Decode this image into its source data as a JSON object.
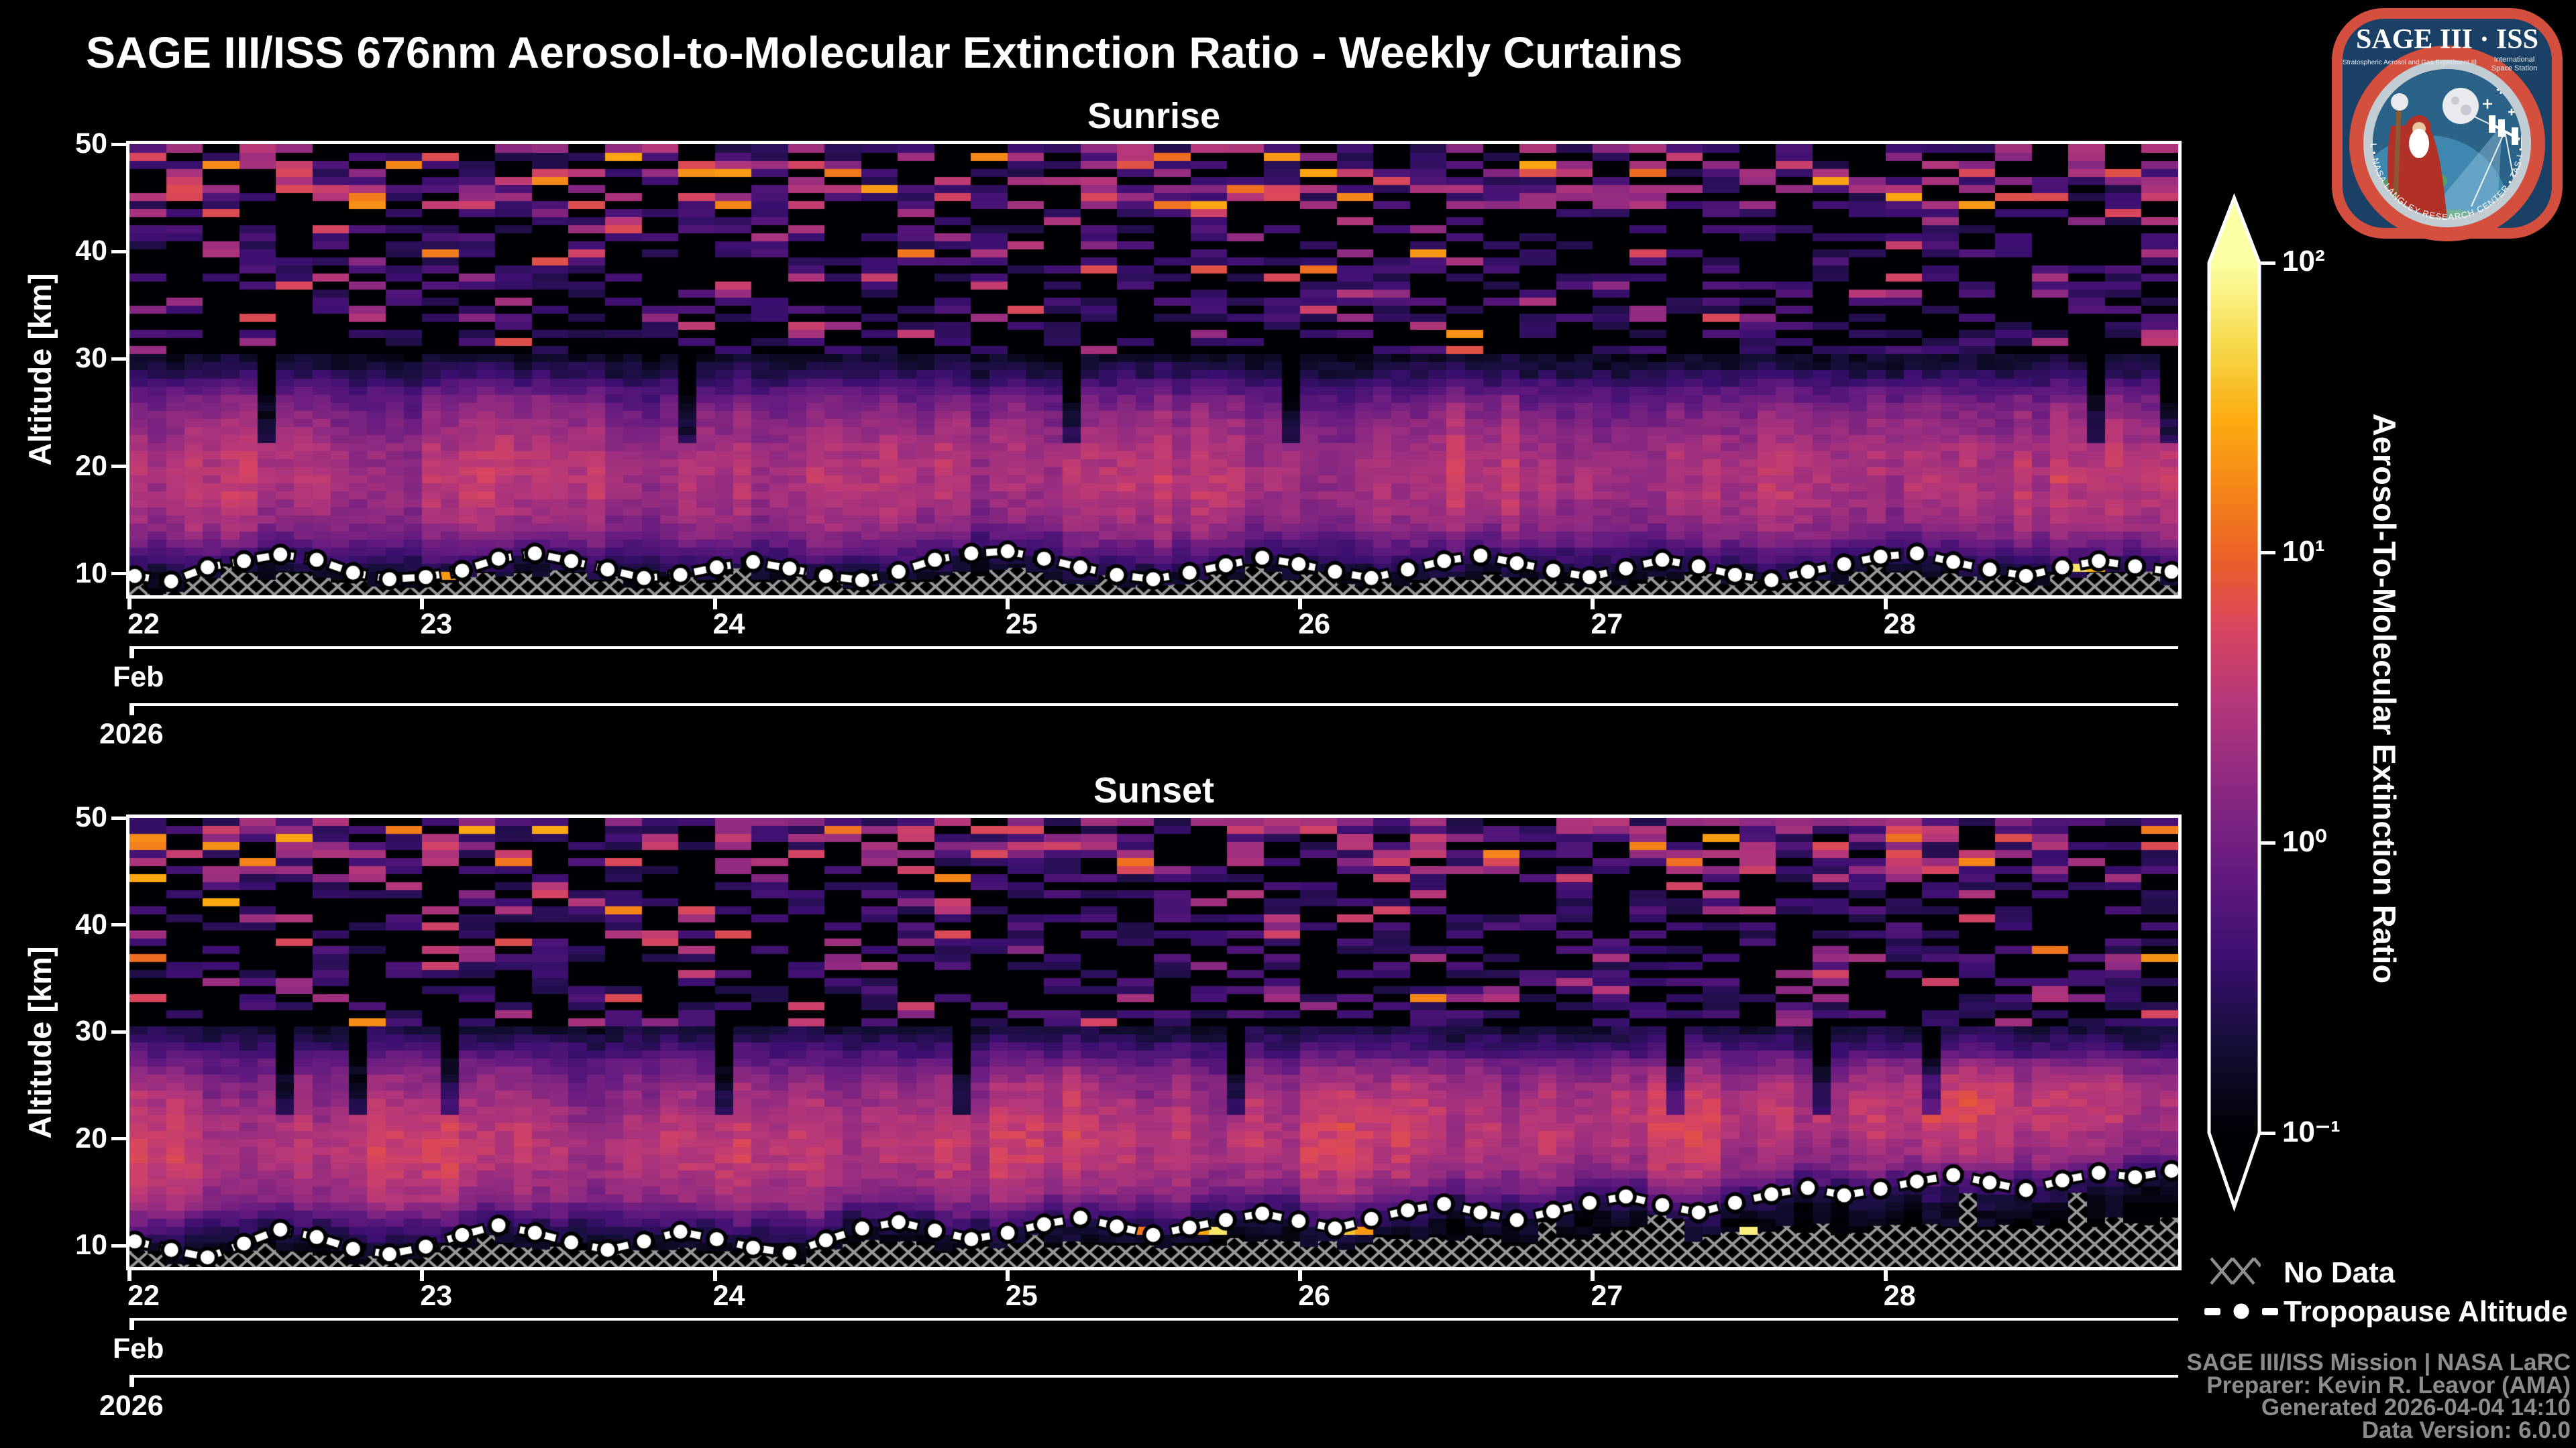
{
  "header": {
    "title": "SAGE III/ISS 676nm Aerosol-to-Molecular Extinction Ratio - Weekly Curtains"
  },
  "logo": {
    "name": "SAGE III ISS mission patch",
    "title": "SAGE III · ISS",
    "subtitle_left": "Stratospheric Aerosol and Gas Experiment III",
    "subtitle_right_1": "International",
    "subtitle_right_2": "Space Station",
    "ring_text": "BALL • NASA LANGLEY RESEARCH CENTER • TAS-I • ESA",
    "border_color": "#d44f3e",
    "bg_color": "#1a4065"
  },
  "colorbar": {
    "label": "Aerosol-To-Molecular Extinction Ratio",
    "ticks": [
      "10²",
      "10¹",
      "10⁰",
      "10⁻¹"
    ],
    "scale": "log",
    "domain": [
      0.1,
      100
    ],
    "colormap": "magma/inferno",
    "extend": "both"
  },
  "legend": {
    "no_data": "No Data",
    "tropopause": "Tropopause Altitude",
    "hatch_color": "#8e8e8e"
  },
  "attribution": {
    "color": "#8c8c8c",
    "lines": [
      "SAGE III/ISS Mission | NASA LaRC",
      "Preparer: Kevin R. Leavor (AMA)",
      "Generated 2026-04-04 14:10",
      "Data Version: 6.0.0"
    ]
  },
  "chart_data": [
    {
      "type": "heatmap",
      "title": "Sunrise",
      "ylabel": "Altitude [km]",
      "y_ticks": [
        "50",
        "40",
        "30",
        "20",
        "10"
      ],
      "y_tick_values": [
        50,
        40,
        30,
        20,
        10
      ],
      "y_range_km": [
        8,
        50
      ],
      "x_tick_labels": [
        "22",
        "23",
        "24",
        "25",
        "26",
        "27",
        "28"
      ],
      "x_month": "Feb",
      "x_year": "2026",
      "x_range": "2026-02-22 to 2026-02-28",
      "color_scale": {
        "type": "log",
        "min": 0.1,
        "max": 100
      },
      "column_resolution": "~16 profiles per day (112 columns)",
      "row_resolution_km": 0.75,
      "median_profile_alt_ratio": [
        [
          8.5,
          0.15
        ],
        [
          10,
          0.2
        ],
        [
          12,
          0.6
        ],
        [
          14,
          1.6
        ],
        [
          17,
          2.6
        ],
        [
          19,
          2.8
        ],
        [
          21,
          2.5
        ],
        [
          23,
          1.9
        ],
        [
          25,
          1.3
        ],
        [
          27,
          0.7
        ],
        [
          29,
          0.25
        ],
        [
          31,
          0.12
        ],
        [
          34,
          0.1
        ],
        [
          38,
          0.12
        ],
        [
          42,
          0.18
        ],
        [
          45,
          0.25
        ],
        [
          48,
          0.3
        ],
        [
          50,
          0.3
        ]
      ],
      "tropopause_km": [
        9.8,
        9.3,
        10.6,
        11.2,
        11.8,
        11.3,
        10.1,
        9.5,
        9.7,
        10.3,
        11.4,
        11.9,
        11.2,
        10.4,
        9.6,
        9.9,
        10.6,
        11.1,
        10.5,
        9.8,
        9.4,
        10.2,
        11.3,
        11.9,
        12.1,
        11.4,
        10.6,
        9.9,
        9.5,
        10.1,
        10.8,
        11.5,
        10.9,
        10.2,
        9.6,
        10.4,
        11.2,
        11.7,
        11.0,
        10.3,
        9.7,
        10.5,
        11.3,
        10.7,
        9.9,
        9.4,
        10.2,
        10.9,
        11.6,
        11.9,
        11.1,
        10.4,
        9.8,
        10.6,
        11.2,
        10.7,
        10.2
      ],
      "notes": "Bright ratio band (~1.5-4) between ~13-26 km; dark (<0.2) 29-44 km with purple/pink speckle; speckled 44-50 km; sparse orange hot cells (ratio 10-50) near 9-11 km; gray X hatch = no data below tropopause"
    },
    {
      "type": "heatmap",
      "title": "Sunset",
      "ylabel": "Altitude [km]",
      "y_ticks": [
        "50",
        "40",
        "30",
        "20",
        "10"
      ],
      "y_tick_values": [
        50,
        40,
        30,
        20,
        10
      ],
      "y_range_km": [
        8,
        50
      ],
      "x_tick_labels": [
        "22",
        "23",
        "24",
        "25",
        "26",
        "27",
        "28"
      ],
      "x_month": "Feb",
      "x_year": "2026",
      "x_range": "2026-02-22 to 2026-02-28",
      "color_scale": {
        "type": "log",
        "min": 0.1,
        "max": 100
      },
      "column_resolution": "~16 profiles per day (112 columns)",
      "row_resolution_km": 0.75,
      "median_profile_alt_ratio": [
        [
          8.5,
          0.12
        ],
        [
          10,
          0.18
        ],
        [
          12,
          0.5
        ],
        [
          14,
          1.8
        ],
        [
          17,
          3.2
        ],
        [
          19,
          3.5
        ],
        [
          21,
          3.0
        ],
        [
          23,
          2.3
        ],
        [
          25,
          1.6
        ],
        [
          27,
          0.9
        ],
        [
          29,
          0.35
        ],
        [
          31,
          0.15
        ],
        [
          34,
          0.12
        ],
        [
          38,
          0.15
        ],
        [
          42,
          0.22
        ],
        [
          45,
          0.3
        ],
        [
          48,
          0.4
        ],
        [
          50,
          0.4
        ]
      ],
      "tropopause_km": [
        10.4,
        9.6,
        8.9,
        10.2,
        11.5,
        10.8,
        9.7,
        9.2,
        9.9,
        11.0,
        11.9,
        11.2,
        10.3,
        9.6,
        10.4,
        11.3,
        10.6,
        9.8,
        9.3,
        10.5,
        11.6,
        12.2,
        11.4,
        10.6,
        11.2,
        12.0,
        12.6,
        11.8,
        11.0,
        11.7,
        12.4,
        13.0,
        12.3,
        11.6,
        12.5,
        13.3,
        13.9,
        13.1,
        12.4,
        13.2,
        14.0,
        14.6,
        13.8,
        13.1,
        14.0,
        14.8,
        15.4,
        14.7,
        15.3,
        16.0,
        16.6,
        15.9,
        15.2,
        16.1,
        16.8,
        16.4,
        17.0
      ],
      "notes": "Brighter band than Sunrise; tropopause rises from ~10 km (Feb 22) to ~17 km (Feb 28); more orange hot cells (ratio 10-60) near 9-11.5 km on Feb 24-27; larger hatched no-data patches below rising tropopause"
    }
  ]
}
